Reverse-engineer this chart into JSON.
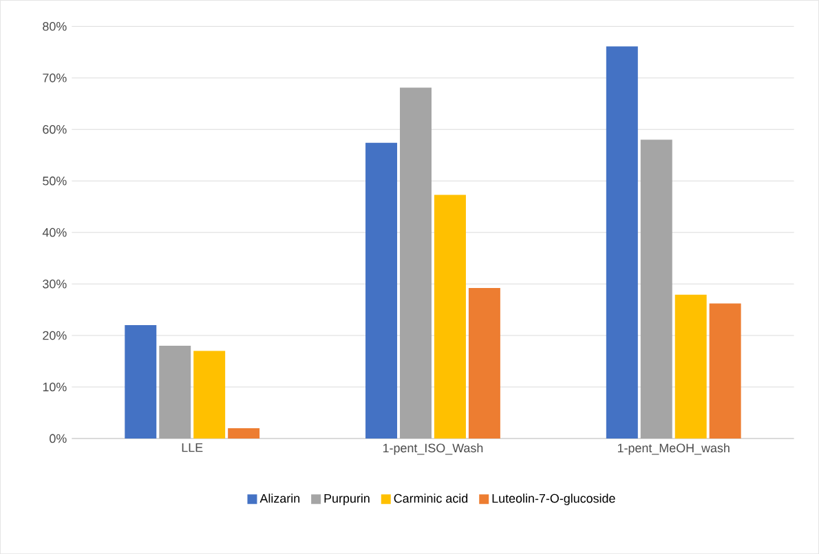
{
  "chart_data": {
    "type": "bar",
    "categories": [
      "LLE",
      "1-pent_ISO_Wash",
      "1-pent_MeOH_wash"
    ],
    "series": [
      {
        "name": "Alizarin",
        "color": "#4472c4",
        "values": [
          22,
          57.4,
          76.1
        ]
      },
      {
        "name": "Purpurin",
        "color": "#a5a5a5",
        "values": [
          18,
          68.1,
          58
        ]
      },
      {
        "name": "Carminic acid",
        "color": "#ffc000",
        "values": [
          17,
          47.3,
          27.9
        ]
      },
      {
        "name": "Luteolin-7-O-glucoside",
        "color": "#ed7d31",
        "values": [
          2,
          29.2,
          26.2
        ]
      }
    ],
    "ylim": [
      0,
      80
    ],
    "yticks": [
      {
        "value": 0,
        "label": "0%"
      },
      {
        "value": 10,
        "label": "10%"
      },
      {
        "value": 20,
        "label": "20%"
      },
      {
        "value": 30,
        "label": "30%"
      },
      {
        "value": 40,
        "label": "40%"
      },
      {
        "value": 50,
        "label": "50%"
      },
      {
        "value": 60,
        "label": "60%"
      },
      {
        "value": 70,
        "label": "70%"
      },
      {
        "value": 80,
        "label": "80%"
      }
    ],
    "grid": "y",
    "legend": "bottom"
  }
}
